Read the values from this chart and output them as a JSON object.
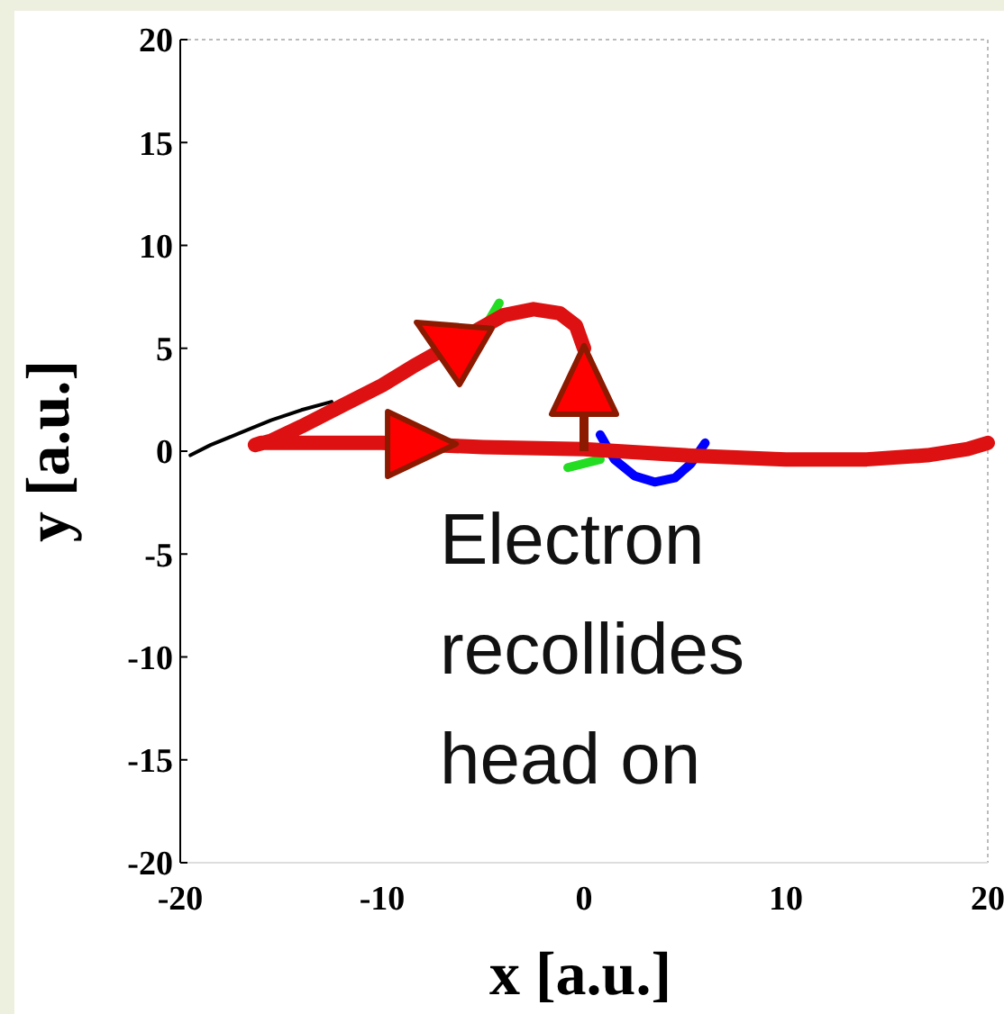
{
  "chart_data": {
    "type": "line",
    "xlabel": "x [a.u.]",
    "ylabel": "y [a.u.]",
    "xlim": [
      -20,
      20
    ],
    "ylim": [
      -20,
      20
    ],
    "xticks": [
      -20,
      -10,
      0,
      10,
      20
    ],
    "yticks": [
      -20,
      -15,
      -10,
      -5,
      0,
      5,
      10,
      15,
      20
    ],
    "series": [
      {
        "color": "#000000",
        "x": [
          -19.5,
          -18.5,
          -17,
          -15.5,
          -14,
          -12.5
        ],
        "values": [
          -0.2,
          0.3,
          0.9,
          1.5,
          2,
          2.4
        ]
      },
      {
        "color": "#0000ff",
        "x": [
          0.8,
          1.5,
          2.5,
          3.5,
          4.5,
          5.3,
          6
        ],
        "values": [
          0.8,
          -0.4,
          -1.2,
          -1.5,
          -1.3,
          -0.6,
          0.4
        ]
      },
      {
        "color": "#22dd22",
        "x": [
          -4.8,
          -4.2,
          null,
          -0.8,
          0.8
        ],
        "values": [
          6.2,
          7.2,
          null,
          -0.8,
          -0.4
        ]
      },
      {
        "color": "#dd1111",
        "x": [
          0,
          -0.4,
          -1.2,
          -2.5,
          -4,
          -8.5,
          -10,
          -12,
          -14,
          -15.5,
          -16.3,
          -16,
          -14,
          -10,
          -5,
          0,
          5,
          10,
          14,
          17,
          19,
          20
        ],
        "values": [
          5,
          6.1,
          6.7,
          6.9,
          6.6,
          4.1,
          3.2,
          2.2,
          1.2,
          0.5,
          0.3,
          0.4,
          0.4,
          0.4,
          0.2,
          0.1,
          -0.2,
          -0.4,
          -0.4,
          -0.2,
          0.1,
          0.4
        ]
      }
    ],
    "grid": false,
    "annotations": [
      "Electron recollides head on"
    ]
  }
}
